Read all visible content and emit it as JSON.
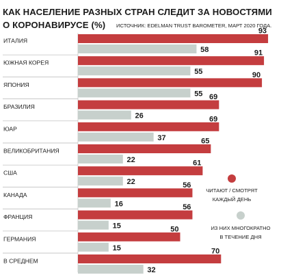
{
  "header": {
    "title_line1": "КАК НАСЕЛЕНИЕ РАЗНЫХ СТРАН СЛЕДИТ ЗА НОВОСТЯМИ",
    "title_line2": "О КОРОНАВИРУСЕ (%)",
    "source": "ИСТОЧНИК: EDELMAN TRUST BAROMETER, МАРТ 2020 ГОДА."
  },
  "legend": {
    "daily_line1": "ЧИТАЮТ / СМОТРЯТ",
    "daily_line2": "КАЖДЫЙ ДЕНЬ",
    "multiple_line1": "ИЗ НИХ МНОГОКРАТНО",
    "multiple_line2": "В ТЕЧЕНИЕ ДНЯ"
  },
  "colors": {
    "daily": "#c43d3f",
    "multiple": "#c7d0cc",
    "divider": "#b5b5b5"
  },
  "chart_data": {
    "type": "bar",
    "orientation": "horizontal",
    "title": "КАК НАСЕЛЕНИЕ РАЗНЫХ СТРАН СЛЕДИТ ЗА НОВОСТЯМИ О КОРОНАВИРУСЕ (%)",
    "categories": [
      "ИТАЛИЯ",
      "ЮЖНАЯ КОРЕЯ",
      "ЯПОНИЯ",
      "БРАЗИЛИЯ",
      "ЮАР",
      "ВЕЛИКОБРИТАНИЯ",
      "США",
      "КАНАДА",
      "ФРАНЦИЯ",
      "ГЕРМАНИЯ",
      "В СРЕДНЕМ"
    ],
    "series": [
      {
        "name": "ЧИТАЮТ / СМОТРЯТ КАЖДЫЙ ДЕНЬ",
        "values": [
          93,
          91,
          90,
          69,
          69,
          65,
          61,
          56,
          56,
          50,
          70
        ]
      },
      {
        "name": "ИЗ НИХ МНОГОКРАТНО В ТЕЧЕНИЕ ДНЯ",
        "values": [
          58,
          55,
          55,
          26,
          37,
          22,
          22,
          16,
          15,
          15,
          32
        ]
      }
    ],
    "xlim": [
      0,
      100
    ],
    "data_labels": true,
    "grid": false,
    "legend_position": "right"
  }
}
